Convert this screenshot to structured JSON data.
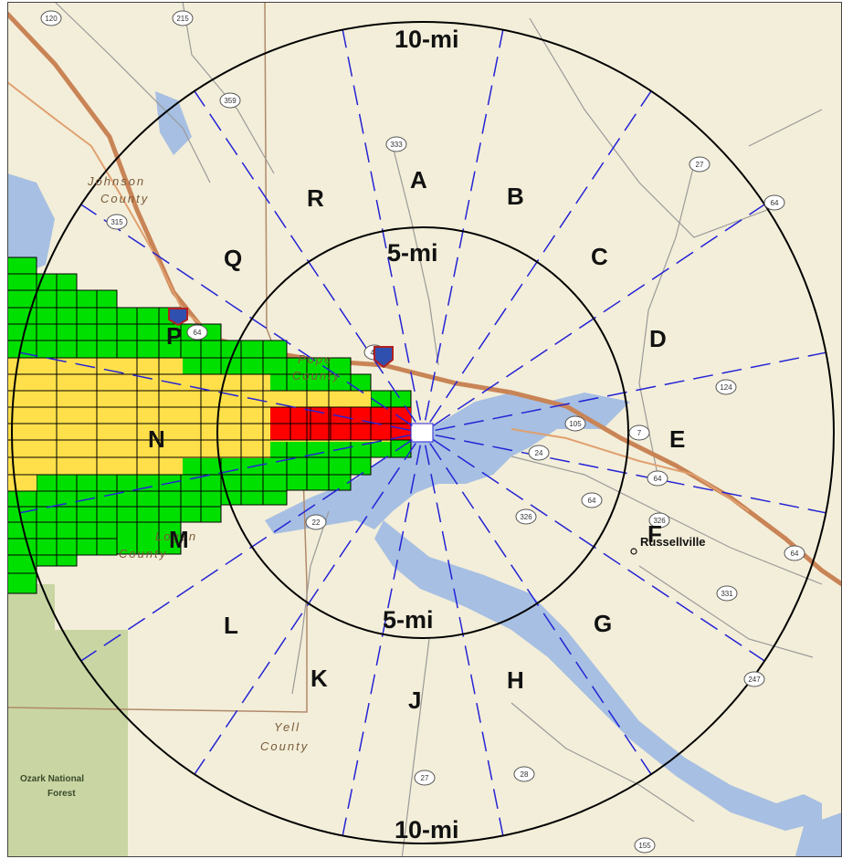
{
  "map": {
    "sector_labels": [
      "A",
      "B",
      "C",
      "D",
      "E",
      "F",
      "G",
      "H",
      "J",
      "K",
      "L",
      "M",
      "N",
      "P",
      "Q",
      "R"
    ],
    "ring_labels": {
      "outer_top": "10-mi",
      "outer_bottom": "10-mi",
      "inner_top": "5-mi",
      "inner_bottom": "5-mi"
    },
    "county_labels": {
      "johnson_1": "Johnson",
      "johnson_2": "County",
      "pope_1": "Pope",
      "pope_2": "County",
      "logan_1": "Logan",
      "logan_2": "County",
      "yell_1": "Yell",
      "yell_2": "County"
    },
    "city_label": "Russellville",
    "forest_label_1": "Ozark National",
    "forest_label_2": "Forest",
    "highway_shields": [
      "120",
      "215",
      "359",
      "333",
      "27",
      "64",
      "315",
      "64",
      "40",
      "7",
      "124",
      "105",
      "24",
      "326",
      "64",
      "64",
      "22",
      "326",
      "331",
      "64",
      "247",
      "27",
      "28",
      "155"
    ],
    "colors": {
      "background": "#f3eed9",
      "water": "#a7bfe2",
      "forest": "#c9d6a3",
      "highway": "#c98456",
      "plume_green": "#00e000",
      "plume_yellow": "#ffe04a",
      "plume_red": "#ff0000",
      "sector_lines": "#2323d6",
      "rings": "#000000"
    }
  }
}
